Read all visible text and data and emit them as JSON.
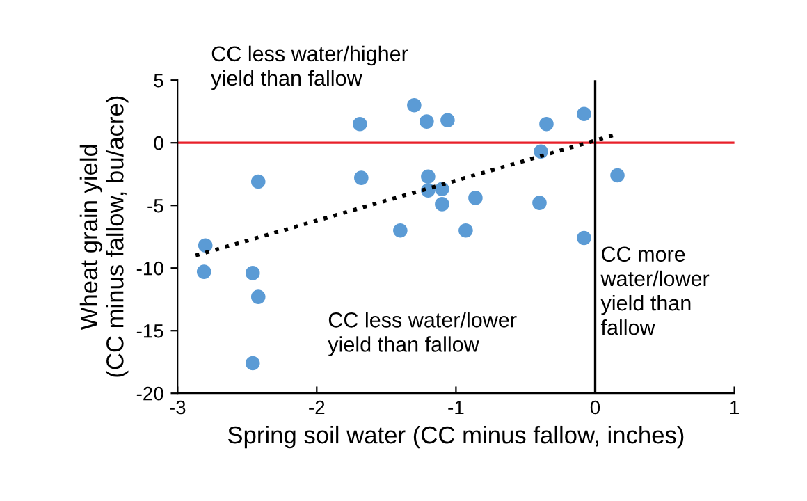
{
  "chart_data": {
    "type": "scatter",
    "xlabel": "Spring soil water (CC minus fallow, inches)",
    "ylabel": "Wheat grain yield\n(CC minus fallow, bu/acre)",
    "xlim": [
      -3,
      1
    ],
    "xticks": [
      -3,
      -2,
      -1,
      0,
      1
    ],
    "ylim": [
      -20,
      5
    ],
    "yticks": [
      -20,
      -15,
      -10,
      -5,
      0,
      5
    ],
    "grid": false,
    "legend": false,
    "series": [
      {
        "color": "#5b9bd5",
        "marker": "circle",
        "x": [
          -1.3,
          -1.69,
          -1.21,
          -1.06,
          -0.35,
          -0.08,
          -0.39,
          0.16,
          -2.42,
          -1.68,
          -1.2,
          -1.2,
          -1.1,
          -1.1,
          -0.86,
          -0.4,
          -1.4,
          -0.93,
          -0.08,
          -2.8,
          -2.81,
          -2.46,
          -2.42,
          -2.46
        ],
        "values": [
          3.0,
          1.5,
          1.7,
          1.8,
          1.5,
          2.3,
          -0.7,
          -2.6,
          -3.1,
          -2.8,
          -2.7,
          -3.8,
          -3.7,
          -4.9,
          -4.4,
          -4.8,
          -7.0,
          -7.0,
          -7.6,
          -8.2,
          -10.3,
          -10.4,
          -12.3,
          -17.6
        ]
      },
      {
        "type": "line",
        "color": "#000000",
        "line_style": "dotted",
        "marker": "none",
        "x": [
          -2.87,
          0.13
        ],
        "values": [
          -9.0,
          0.6
        ]
      }
    ],
    "ref_lines": [
      {
        "axis": "y",
        "value": 0,
        "color": "#e8202a",
        "line_style": "solid"
      },
      {
        "axis": "x",
        "value": 0,
        "color": "#000000",
        "line_style": "solid"
      }
    ],
    "annotations": [
      "CC less water/higher\nyield than fallow",
      "CC less water/lower\nyield than fallow",
      "CC more\nwater/lower\nyield than\nfallow"
    ]
  }
}
